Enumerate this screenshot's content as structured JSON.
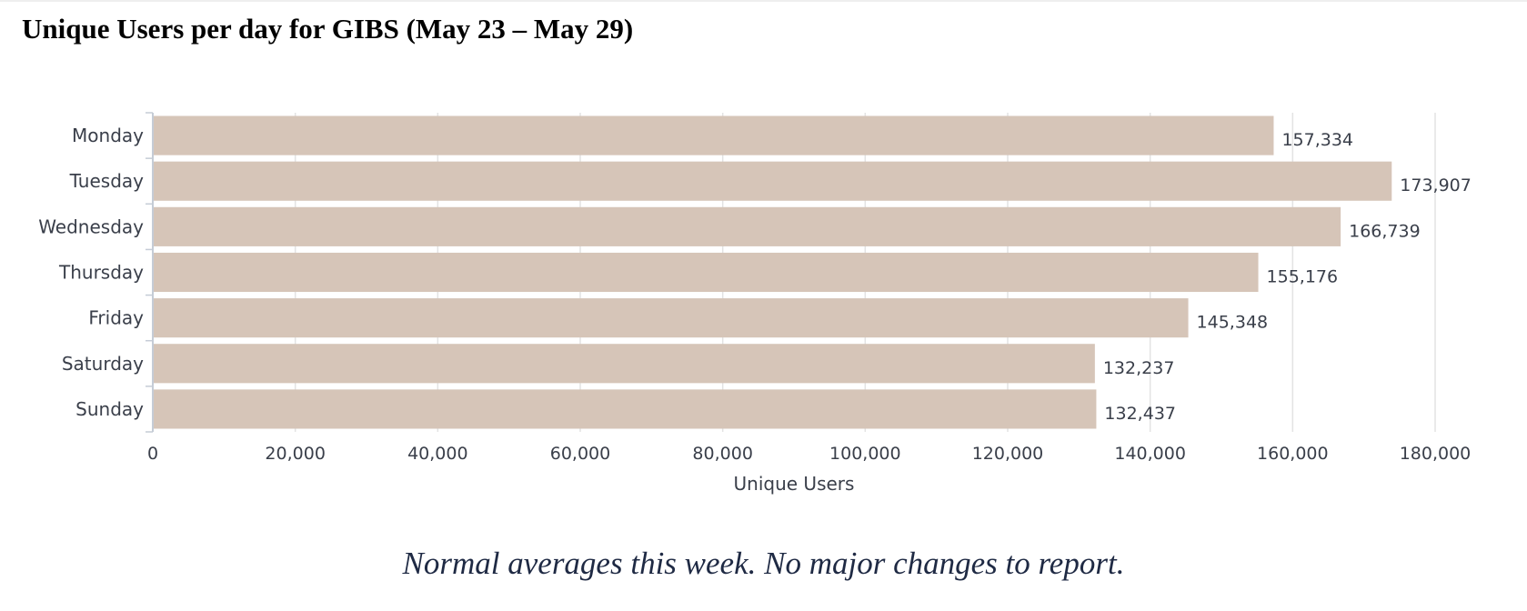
{
  "header": {
    "title": "Unique Users per day for GIBS (May 23 – May 29)"
  },
  "chart_data": {
    "type": "bar",
    "orientation": "horizontal",
    "categories": [
      "Monday",
      "Tuesday",
      "Wednesday",
      "Thursday",
      "Friday",
      "Saturday",
      "Sunday"
    ],
    "values": [
      157334,
      173907,
      166739,
      155176,
      145348,
      132237,
      132437
    ],
    "data_labels": [
      "157,334",
      "173,907",
      "166,739",
      "155,176",
      "145,348",
      "132,237",
      "132,437"
    ],
    "xlabel": "Unique Users",
    "ylabel": "",
    "xlim": [
      0,
      180000
    ],
    "x_ticks": [
      0,
      20000,
      40000,
      60000,
      80000,
      100000,
      120000,
      140000,
      160000,
      180000
    ],
    "x_tick_labels": [
      "0",
      "20,000",
      "40,000",
      "60,000",
      "80,000",
      "100,000",
      "120,000",
      "140,000",
      "160,000",
      "180,000"
    ],
    "grid": true,
    "legend": "none",
    "bar_color": "#d6c5b8",
    "grid_color": "#e3e3e3",
    "axis_color": "#c5ccd6"
  },
  "footer": {
    "note": "Normal averages this week.  No major changes to report."
  }
}
